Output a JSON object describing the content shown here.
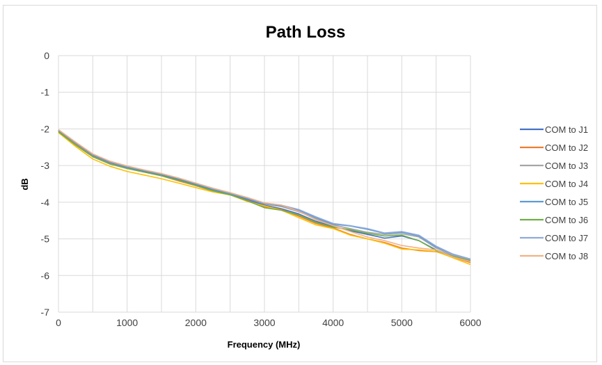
{
  "chart_data": {
    "type": "line",
    "title": "Path Loss",
    "xlabel": "Frequency (MHz)",
    "ylabel": "dB",
    "xlim": [
      0,
      6000
    ],
    "ylim": [
      -7,
      0
    ],
    "xticks": [
      0,
      1000,
      2000,
      3000,
      4000,
      5000,
      6000
    ],
    "yticks": [
      0,
      -1,
      -2,
      -3,
      -4,
      -5,
      -6,
      -7
    ],
    "grid": true,
    "legend_position": "right",
    "x": [
      0,
      250,
      500,
      750,
      1000,
      1250,
      1500,
      1750,
      2000,
      2250,
      2500,
      2750,
      3000,
      3250,
      3500,
      3750,
      4000,
      4250,
      4500,
      4750,
      5000,
      5250,
      5500,
      5750,
      6000
    ],
    "series": [
      {
        "name": "COM to J1",
        "color": "#4472C4",
        "values": [
          -2.05,
          -2.4,
          -2.72,
          -2.92,
          -3.05,
          -3.15,
          -3.25,
          -3.38,
          -3.52,
          -3.66,
          -3.78,
          -3.93,
          -4.08,
          -4.18,
          -4.32,
          -4.52,
          -4.66,
          -4.78,
          -4.88,
          -4.98,
          -4.92,
          -5.05,
          -5.3,
          -5.48,
          -5.6
        ]
      },
      {
        "name": "COM to J2",
        "color": "#ED7D31",
        "values": [
          -2.06,
          -2.42,
          -2.75,
          -2.95,
          -3.08,
          -3.18,
          -3.28,
          -3.42,
          -3.55,
          -3.7,
          -3.8,
          -3.95,
          -4.12,
          -4.2,
          -4.38,
          -4.58,
          -4.7,
          -4.88,
          -5.0,
          -5.1,
          -5.25,
          -5.32,
          -5.35,
          -5.5,
          -5.65
        ]
      },
      {
        "name": "COM to J3",
        "color": "#A5A5A5",
        "values": [
          -2.03,
          -2.38,
          -2.7,
          -2.9,
          -3.03,
          -3.13,
          -3.23,
          -3.35,
          -3.5,
          -3.64,
          -3.76,
          -3.9,
          -4.05,
          -4.12,
          -4.26,
          -4.45,
          -4.62,
          -4.72,
          -4.82,
          -4.88,
          -4.86,
          -4.95,
          -5.25,
          -5.45,
          -5.58
        ]
      },
      {
        "name": "COM to J4",
        "color": "#FFC000",
        "values": [
          -2.1,
          -2.48,
          -2.82,
          -3.02,
          -3.16,
          -3.26,
          -3.36,
          -3.48,
          -3.6,
          -3.72,
          -3.8,
          -3.98,
          -4.1,
          -4.22,
          -4.42,
          -4.62,
          -4.72,
          -4.9,
          -5.0,
          -5.12,
          -5.28,
          -5.3,
          -5.34,
          -5.52,
          -5.7
        ]
      },
      {
        "name": "COM to J5",
        "color": "#5B9BD5",
        "values": [
          -2.04,
          -2.39,
          -2.71,
          -2.91,
          -3.04,
          -3.14,
          -3.24,
          -3.36,
          -3.5,
          -3.65,
          -3.77,
          -3.9,
          -4.04,
          -4.1,
          -4.22,
          -4.42,
          -4.6,
          -4.65,
          -4.74,
          -4.85,
          -4.82,
          -4.92,
          -5.22,
          -5.42,
          -5.55
        ]
      },
      {
        "name": "COM to J6",
        "color": "#70AD47",
        "values": [
          -2.08,
          -2.44,
          -2.76,
          -2.96,
          -3.08,
          -3.18,
          -3.28,
          -3.4,
          -3.54,
          -3.69,
          -3.8,
          -3.96,
          -4.15,
          -4.22,
          -4.35,
          -4.55,
          -4.68,
          -4.75,
          -4.85,
          -4.92,
          -4.9,
          -5.05,
          -5.32,
          -5.48,
          -5.6
        ]
      },
      {
        "name": "COM to J7",
        "color": "#8EA9DB",
        "values": [
          -2.02,
          -2.37,
          -2.69,
          -2.89,
          -3.02,
          -3.12,
          -3.22,
          -3.34,
          -3.48,
          -3.62,
          -3.74,
          -3.88,
          -4.02,
          -4.08,
          -4.2,
          -4.4,
          -4.58,
          -4.64,
          -4.72,
          -4.84,
          -4.8,
          -4.9,
          -5.2,
          -5.42,
          -5.55
        ]
      },
      {
        "name": "COM to J8",
        "color": "#F4B183",
        "values": [
          -2.02,
          -2.36,
          -2.68,
          -2.88,
          -3.01,
          -3.12,
          -3.22,
          -3.34,
          -3.48,
          -3.62,
          -3.74,
          -3.87,
          -4.02,
          -4.08,
          -4.25,
          -4.48,
          -4.64,
          -4.8,
          -4.95,
          -5.05,
          -5.18,
          -5.25,
          -5.3,
          -5.5,
          -5.62
        ]
      }
    ]
  }
}
